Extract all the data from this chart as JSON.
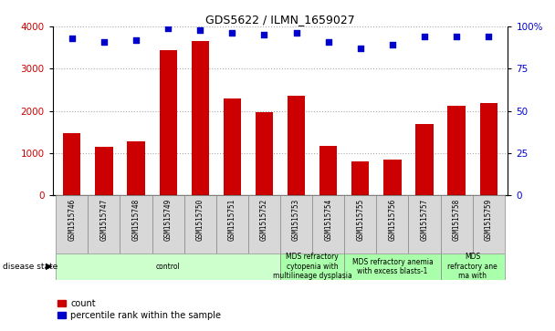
{
  "title": "GDS5622 / ILMN_1659027",
  "samples": [
    "GSM1515746",
    "GSM1515747",
    "GSM1515748",
    "GSM1515749",
    "GSM1515750",
    "GSM1515751",
    "GSM1515752",
    "GSM1515753",
    "GSM1515754",
    "GSM1515755",
    "GSM1515756",
    "GSM1515757",
    "GSM1515758",
    "GSM1515759"
  ],
  "counts": [
    1470,
    1150,
    1280,
    3430,
    3650,
    2300,
    1970,
    2350,
    1180,
    810,
    850,
    1680,
    2120,
    2180
  ],
  "percentile_ranks": [
    93,
    91,
    92,
    99,
    98,
    96,
    95,
    96,
    91,
    87,
    89,
    94,
    94,
    94
  ],
  "bar_color": "#cc0000",
  "dot_color": "#0000cc",
  "ylim_left": [
    0,
    4000
  ],
  "ylim_right": [
    0,
    100
  ],
  "yticks_left": [
    0,
    1000,
    2000,
    3000,
    4000
  ],
  "yticks_right": [
    0,
    25,
    50,
    75,
    100
  ],
  "ytick_labels_right": [
    "0",
    "25",
    "50",
    "75",
    "100%"
  ],
  "disease_groups": [
    {
      "label": "control",
      "start": 0,
      "end": 7,
      "color": "#ccffcc"
    },
    {
      "label": "MDS refractory\ncytopenia with\nmultilineage dysplasia",
      "start": 7,
      "end": 9,
      "color": "#aaffaa"
    },
    {
      "label": "MDS refractory anemia\nwith excess blasts-1",
      "start": 9,
      "end": 12,
      "color": "#aaffaa"
    },
    {
      "label": "MDS\nrefractory ane\nma with",
      "start": 12,
      "end": 14,
      "color": "#aaffaa"
    }
  ],
  "disease_state_label": "disease state",
  "legend_count_label": "count",
  "legend_percentile_label": "percentile rank within the sample",
  "grid_color": "#aaaaaa",
  "tick_label_color_left": "#cc0000",
  "tick_label_color_right": "#0000cc",
  "title_fontsize": 9,
  "tick_fontsize": 7.5,
  "label_fontsize": 5.5,
  "disease_fontsize": 5.5,
  "legend_fontsize": 7
}
